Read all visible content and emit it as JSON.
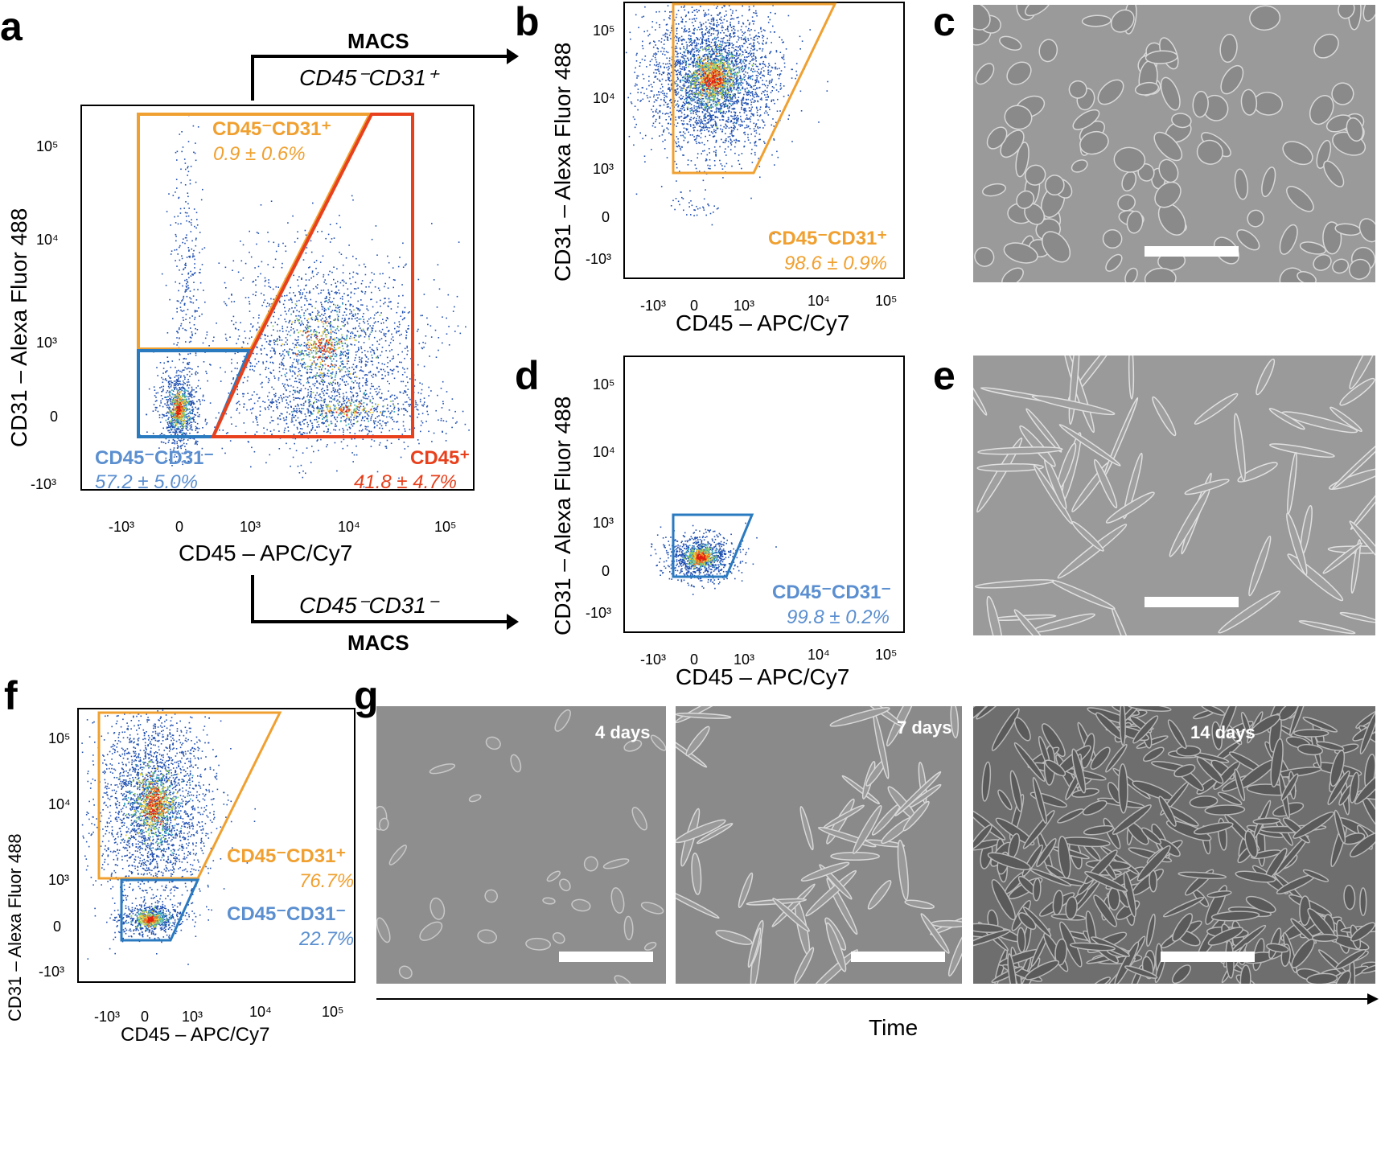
{
  "panels": {
    "a": {
      "letter": "a"
    },
    "b": {
      "letter": "b"
    },
    "c": {
      "letter": "c"
    },
    "d": {
      "letter": "d"
    },
    "e": {
      "letter": "e"
    },
    "f": {
      "letter": "f"
    },
    "g": {
      "letter": "g"
    }
  },
  "axes": {
    "y_label": "CD31 – Alexa Fluor 488",
    "x_label": "CD45 – APC/Cy7",
    "ticks_y": [
      "10⁵",
      "10⁴",
      "10³",
      "0",
      "-10³"
    ],
    "ticks_x": [
      "-10³",
      "0",
      "10³",
      "10⁴",
      "10⁵"
    ]
  },
  "arrows": {
    "top_bold": "MACS",
    "top_italic": "CD45⁻CD31⁺",
    "bottom_italic": "CD45⁻CD31⁻",
    "bottom_bold": "MACS"
  },
  "gates": {
    "a": [
      {
        "name": "CD45⁻CD31⁺",
        "value": "0.9 ± 0.6%",
        "color": "#f0a030"
      },
      {
        "name": "CD45⁻CD31⁻",
        "value": "57.2 ± 5.0%",
        "color": "#5b8fd0"
      },
      {
        "name": "CD45⁺",
        "value": "41.8 ± 4.7%",
        "color": "#e8401c"
      }
    ],
    "b": [
      {
        "name": "CD45⁻CD31⁺",
        "value": "98.6 ± 0.9%",
        "color": "#f0a030"
      }
    ],
    "d": [
      {
        "name": "CD45⁻CD31⁻",
        "value": "99.8 ± 0.2%",
        "color": "#5b8fd0"
      }
    ],
    "f": [
      {
        "name": "CD45⁻CD31⁺",
        "value": "76.7%",
        "color": "#f0a030"
      },
      {
        "name": "CD45⁻CD31⁻",
        "value": "22.7%",
        "color": "#5b8fd0"
      }
    ]
  },
  "timecourse": {
    "days": [
      "4 days",
      "7 days",
      "14 days"
    ],
    "axis_label": "Time"
  },
  "colors": {
    "orange_gate": "#f0a030",
    "blue_gate": "#2a7ac0",
    "red_gate": "#e8401c",
    "dots": "#1f4fb0"
  }
}
